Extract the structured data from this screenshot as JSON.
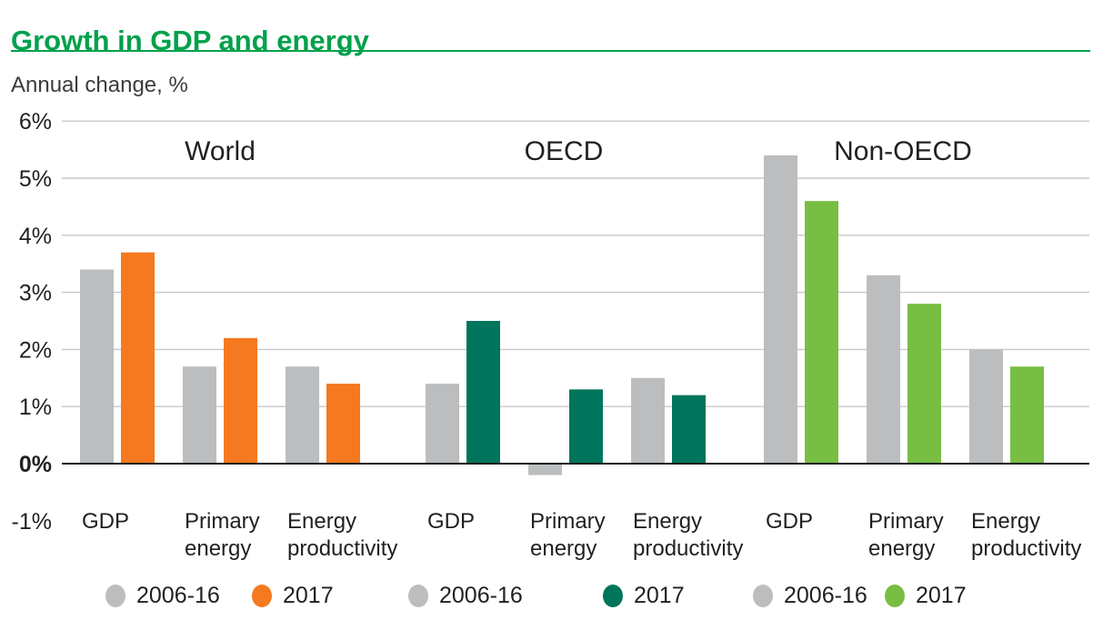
{
  "page": {
    "title": "Growth in GDP and energy",
    "subtitle": "Annual change, %"
  },
  "colors": {
    "brand_green": "#00A14B",
    "bar_gray": "#BBBDBF",
    "world_2017_orange": "#F5791F",
    "oecd_2017_teal": "#00755C",
    "non_oecd_2017_green": "#78BE43",
    "gridline": "#C7C8CA",
    "zero_line": "#1A1A1A",
    "text": "#231F20"
  },
  "chart_data": {
    "type": "bar",
    "title": "Growth in GDP and energy",
    "subtitle": "Annual change, %",
    "ylabel": "Annual change, %",
    "ylim": [
      -1,
      6
    ],
    "grid": true,
    "legend_position": "bottom",
    "yticks": [
      {
        "value": 6,
        "label": "6%"
      },
      {
        "value": 5,
        "label": "5%"
      },
      {
        "value": 4,
        "label": "4%"
      },
      {
        "value": 3,
        "label": "3%"
      },
      {
        "value": 2,
        "label": "2%"
      },
      {
        "value": 1,
        "label": "1%"
      },
      {
        "value": 0,
        "label": "0%"
      },
      {
        "value": -1,
        "label": "-1%"
      }
    ],
    "series_names": [
      "2006-16",
      "2017"
    ],
    "groups": [
      {
        "name": "World",
        "color_2006_16": "#BBBDBF",
        "color_2017": "#F5791F",
        "categories": [
          {
            "label_lines": [
              "GDP"
            ],
            "values": [
              3.4,
              3.7
            ]
          },
          {
            "label_lines": [
              "Primary",
              "energy"
            ],
            "values": [
              1.7,
              2.2
            ]
          },
          {
            "label_lines": [
              "Energy",
              "productivity"
            ],
            "values": [
              1.7,
              1.4
            ]
          }
        ]
      },
      {
        "name": "OECD",
        "color_2006_16": "#BBBDBF",
        "color_2017": "#00755C",
        "categories": [
          {
            "label_lines": [
              "GDP"
            ],
            "values": [
              1.4,
              2.5
            ]
          },
          {
            "label_lines": [
              "Primary",
              "energy"
            ],
            "values": [
              -0.2,
              1.3
            ]
          },
          {
            "label_lines": [
              "Energy",
              "productivity"
            ],
            "values": [
              1.5,
              1.2
            ]
          }
        ]
      },
      {
        "name": "Non-OECD",
        "color_2006_16": "#BBBDBF",
        "color_2017": "#78BE43",
        "categories": [
          {
            "label_lines": [
              "GDP"
            ],
            "values": [
              5.4,
              4.6
            ]
          },
          {
            "label_lines": [
              "Primary",
              "energy"
            ],
            "values": [
              3.3,
              2.8
            ]
          },
          {
            "label_lines": [
              "Energy",
              "productivity"
            ],
            "values": [
              2.0,
              1.7
            ]
          }
        ]
      }
    ],
    "legend": [
      {
        "label": "2006-16",
        "color": "#BBBDBF"
      },
      {
        "label": "2017",
        "color": "#F5791F"
      },
      {
        "label": "2006-16",
        "color": "#BBBDBF"
      },
      {
        "label": "2017",
        "color": "#00755C"
      },
      {
        "label": "2006-16",
        "color": "#BBBDBF"
      },
      {
        "label": "2017",
        "color": "#78BE43"
      }
    ]
  }
}
